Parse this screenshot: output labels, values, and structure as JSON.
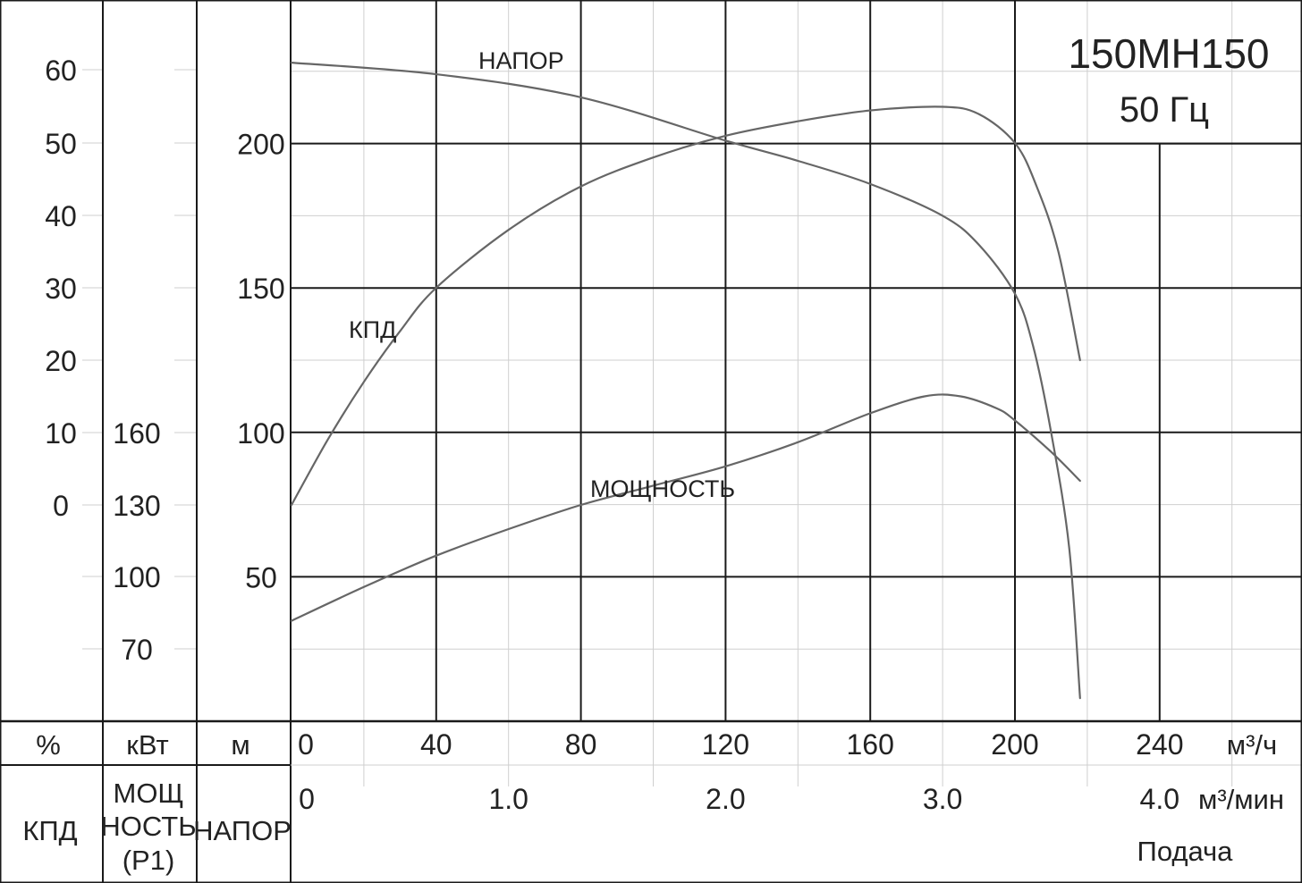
{
  "model": "150MH150",
  "frequency": "50 Гц",
  "axes": {
    "efficiency": {
      "unit": "%",
      "name": "КПД",
      "ticks": [
        "60",
        "50",
        "40",
        "30",
        "20",
        "10",
        "0"
      ]
    },
    "power": {
      "unit": "кВт",
      "name_lines": [
        "МОЩ",
        "НОСТЬ",
        "(P1)"
      ],
      "ticks": [
        "160",
        "130",
        "100",
        "70"
      ]
    },
    "head": {
      "unit": "м",
      "name": "НАПОР",
      "ticks": [
        "200",
        "150",
        "100",
        "50"
      ]
    },
    "flow_m3h": {
      "unit": "м³/ч",
      "ticks": [
        "0",
        "40",
        "80",
        "120",
        "160",
        "200",
        "240"
      ]
    },
    "flow_m3min": {
      "unit": "м³/мин",
      "ticks": [
        "0",
        "1.0",
        "2.0",
        "3.0",
        "4.0"
      ]
    },
    "flow_label": "Подача"
  },
  "chart_data": {
    "type": "line",
    "title": "150MH150",
    "subtitle": "50 Гц",
    "xlabel": "Подача",
    "xunit": "м³/ч",
    "xlim": [
      0,
      278
    ],
    "grid": true,
    "series": [
      {
        "name": "НАПОР",
        "axis": "head",
        "unit": "м",
        "ylim": [
          0,
          250
        ],
        "x": [
          0,
          40,
          80,
          120,
          140,
          160,
          180,
          190,
          200,
          205,
          210,
          215,
          218
        ],
        "y": [
          228,
          224,
          216,
          201,
          194,
          186,
          175,
          165,
          148,
          130,
          100,
          60,
          8
        ]
      },
      {
        "name": "КПД",
        "axis": "efficiency",
        "unit": "%",
        "ylim": [
          -10,
          68
        ],
        "x": [
          0,
          10,
          20,
          30,
          40,
          60,
          80,
          100,
          120,
          140,
          160,
          180,
          190,
          200,
          206,
          212,
          218
        ],
        "y": [
          0,
          9,
          17,
          24,
          30,
          38,
          44,
          48,
          51,
          53,
          54.5,
          55,
          54,
          50,
          44,
          35,
          20
        ]
      },
      {
        "name": "МОЩНОСТЬ",
        "axis": "power",
        "unit": "кВт",
        "ylim": [
          46,
          223
        ],
        "x": [
          0,
          20,
          40,
          60,
          80,
          100,
          120,
          140,
          160,
          175,
          185,
          195,
          200,
          210,
          218
        ],
        "y": [
          82,
          96,
          109,
          120,
          130,
          138,
          146,
          156,
          168,
          175,
          175,
          170,
          165,
          152,
          140
        ]
      }
    ]
  }
}
